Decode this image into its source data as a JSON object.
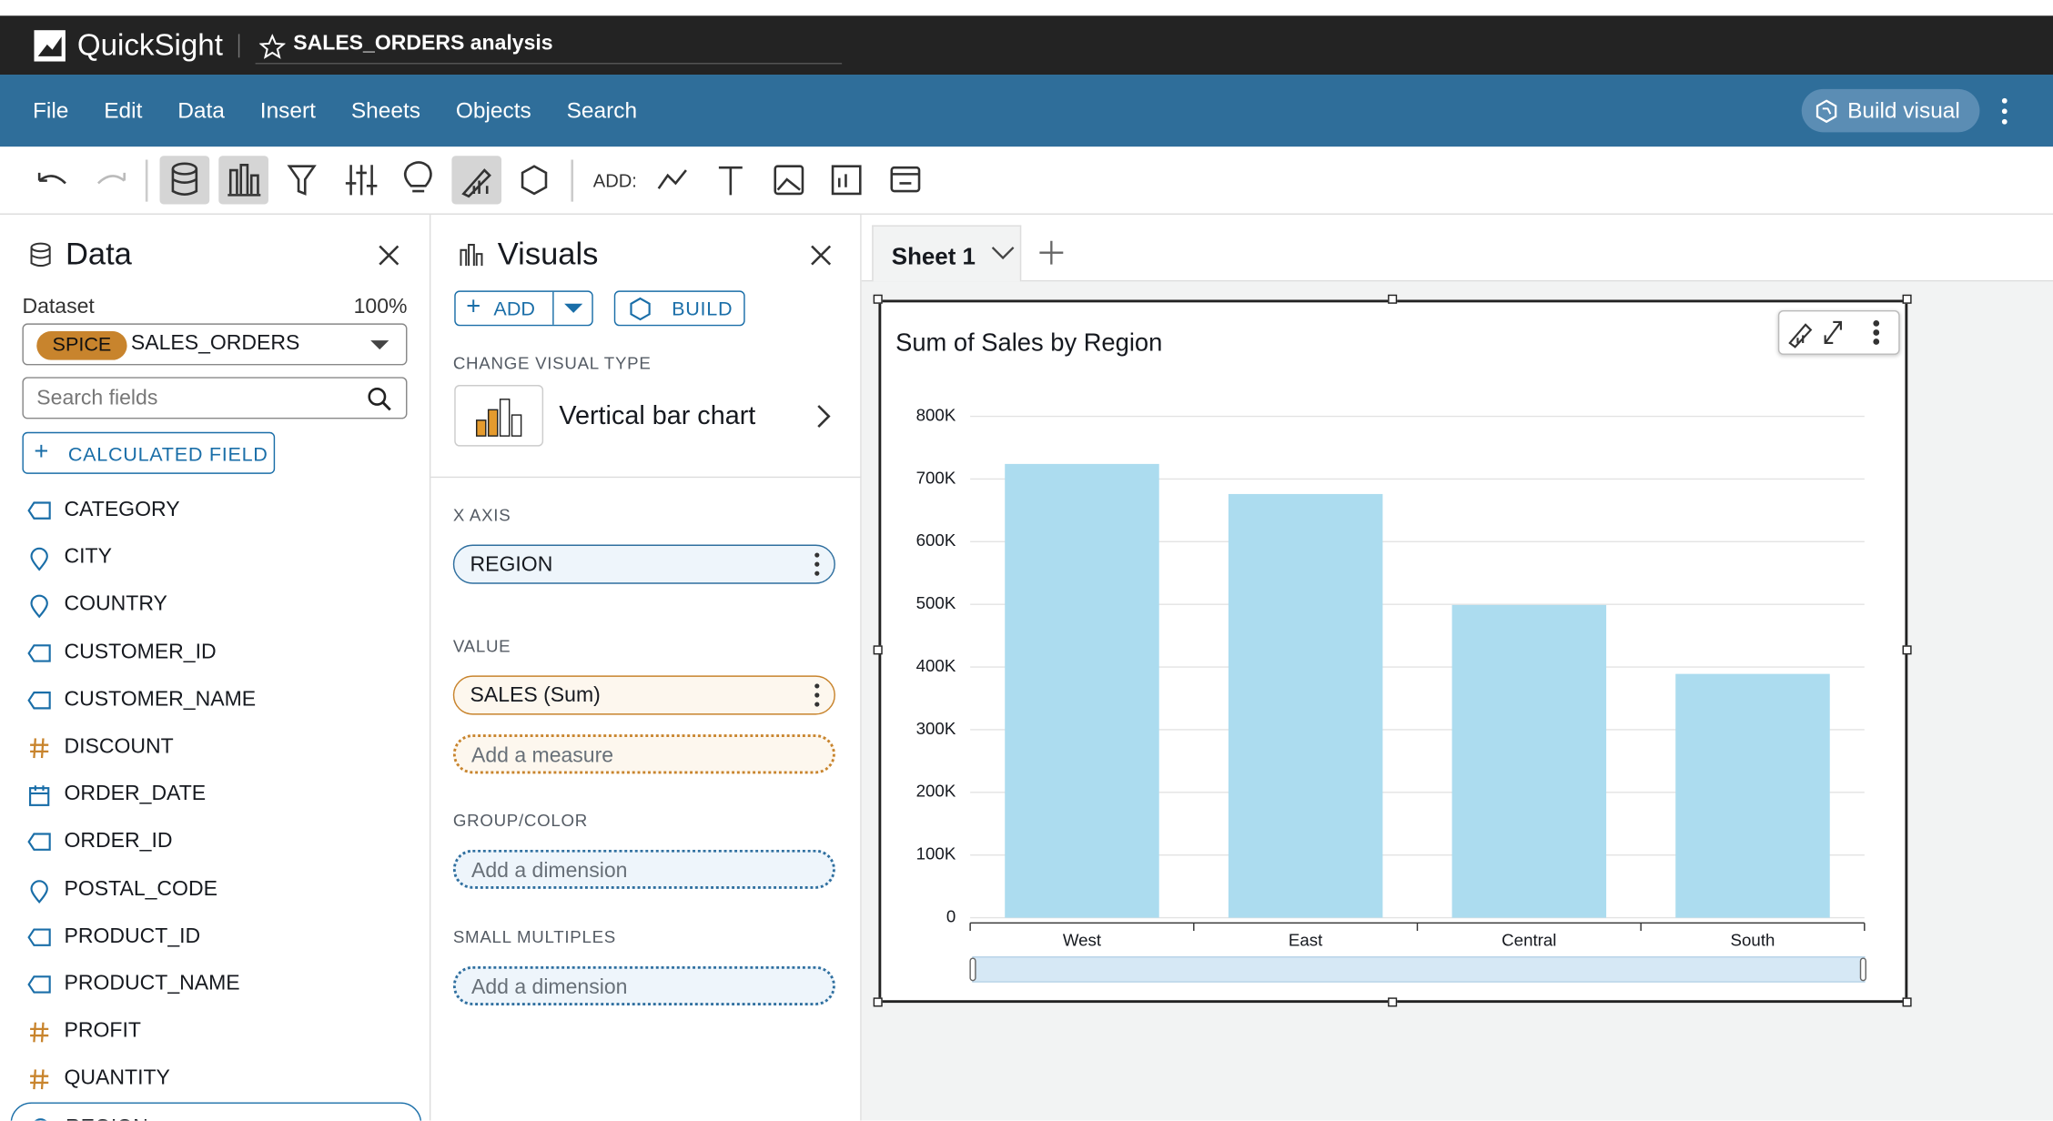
{
  "app": {
    "name": "QuickSight",
    "analysis": "SALES_ORDERS analysis"
  },
  "menu": [
    "File",
    "Edit",
    "Data",
    "Insert",
    "Sheets",
    "Objects",
    "Search"
  ],
  "build_visual": "Build visual",
  "toolbar": {
    "add_label": "ADD:"
  },
  "data_panel": {
    "title": "Data",
    "dataset_label": "Dataset",
    "dataset_percent": "100%",
    "spice": "SPICE",
    "dataset": "SALES_ORDERS",
    "search_placeholder": "Search fields",
    "calculated_field": "CALCULATED FIELD",
    "fields": [
      "CATEGORY",
      "CITY",
      "COUNTRY",
      "CUSTOMER_ID",
      "CUSTOMER_NAME",
      "DISCOUNT",
      "ORDER_DATE",
      "ORDER_ID",
      "POSTAL_CODE",
      "PRODUCT_ID",
      "PRODUCT_NAME",
      "PROFIT",
      "QUANTITY",
      "REGION"
    ]
  },
  "visuals_panel": {
    "title": "Visuals",
    "add": "ADD",
    "build": "BUILD",
    "change_visual_type": "CHANGE VISUAL TYPE",
    "visual_type": "Vertical bar chart",
    "wells": [
      {
        "label": "X AXIS",
        "items": [
          "REGION"
        ]
      },
      {
        "label": "VALUE",
        "items": [
          "SALES (Sum)",
          "Add a measure"
        ]
      },
      {
        "label": "GROUP/COLOR",
        "items": [
          "Add a dimension"
        ]
      },
      {
        "label": "SMALL MULTIPLES",
        "items": [
          "Add a dimension"
        ]
      }
    ]
  },
  "sheet_tab": "Sheet 1",
  "chart_data": {
    "type": "bar",
    "title": "Sum of Sales by Region",
    "categories": [
      "West",
      "East",
      "Central",
      "South"
    ],
    "values": [
      724000,
      676000,
      499000,
      389000
    ],
    "color": "#acdcef",
    "ylim": [
      0,
      800000
    ],
    "yticks": [
      0,
      {
        "value": 100000,
        "label": "100K"
      },
      {
        "value": 200000,
        "label": "200K"
      },
      {
        "value": 300000,
        "label": "300K"
      },
      {
        "value": 400000,
        "label": "400K"
      },
      {
        "value": 500000,
        "label": "500K"
      },
      {
        "value": 600000,
        "label": "600K"
      },
      {
        "value": 700000,
        "label": "700K"
      },
      {
        "value": 800000,
        "label": "800K"
      }
    ],
    "grid": true
  }
}
